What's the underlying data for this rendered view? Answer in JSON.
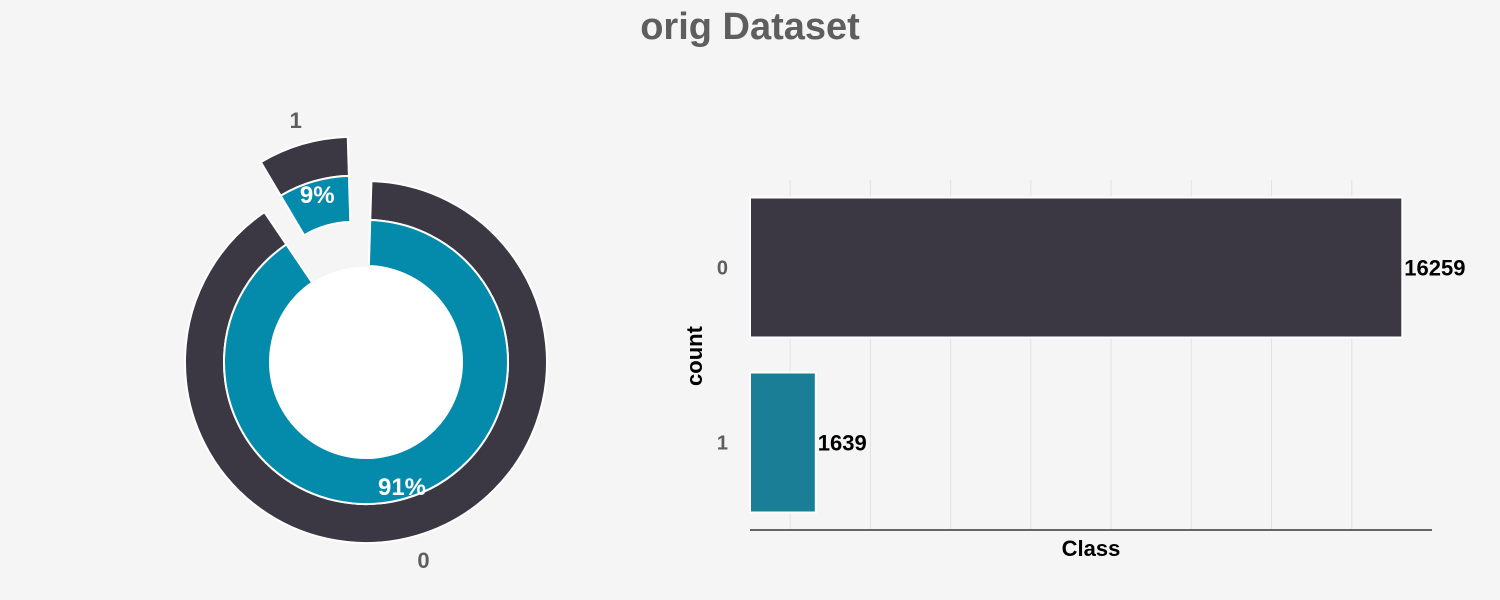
{
  "title": "orig Dataset",
  "colors": {
    "background": "#f5f5f5",
    "dark": "#3b3844",
    "teal": "#048aaa",
    "bar_teal": "#1a7f96",
    "label_gray": "#5e5e5e"
  },
  "chart_data": [
    {
      "type": "pie",
      "style": "nested-donut",
      "categories": [
        "0",
        "1"
      ],
      "values": [
        91,
        9
      ],
      "value_labels": [
        "91%",
        "9%"
      ],
      "exploded": [
        "1"
      ]
    },
    {
      "type": "bar",
      "orientation": "horizontal",
      "categories": [
        "0",
        "1"
      ],
      "values": [
        16259,
        1639
      ],
      "value_labels": [
        "16259",
        "1639"
      ],
      "xlabel": "Class",
      "ylabel": "count",
      "xlim": [
        0,
        17000
      ],
      "grid": true
    }
  ]
}
